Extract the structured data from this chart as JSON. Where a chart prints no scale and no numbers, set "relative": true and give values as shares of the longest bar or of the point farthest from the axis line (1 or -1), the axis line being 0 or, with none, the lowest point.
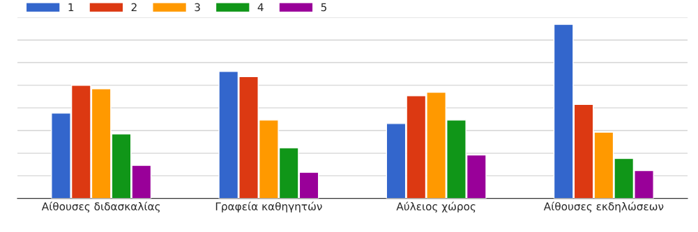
{
  "chart_data": {
    "type": "bar",
    "relative": true,
    "categories": [
      "Αίθουσες διδασκαλίας",
      "Γραφεία καθηγητών",
      "Αύλειος χώρος",
      "Αίθουσες εκδηλώσεων"
    ],
    "series": [
      {
        "name": "1",
        "color": "#3366cc",
        "values": [
          0.49,
          0.73,
          0.43,
          1
        ]
      },
      {
        "name": "2",
        "color": "#dc3912",
        "values": [
          0.65,
          0.7,
          0.59,
          0.54
        ]
      },
      {
        "name": "3",
        "color": "#ff9900",
        "values": [
          0.63,
          0.45,
          0.61,
          0.38
        ]
      },
      {
        "name": "4",
        "color": "#109618",
        "values": [
          0.37,
          0.29,
          0.45,
          0.23
        ]
      },
      {
        "name": "5",
        "color": "#990099",
        "values": [
          0.19,
          0.15,
          0.25,
          0.16
        ]
      }
    ],
    "grid": "y",
    "legend": "top left"
  }
}
